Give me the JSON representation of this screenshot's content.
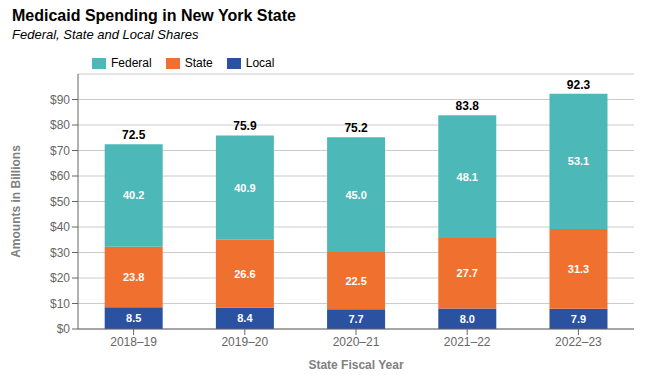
{
  "chart_data": {
    "type": "bar",
    "stacked": true,
    "title": "Medicaid Spending in New York State",
    "subtitle": "Federal, State and Local Shares",
    "xlabel": "State Fiscal Year",
    "ylabel": "Amounts in Billions",
    "categories": [
      "2018–19",
      "2019–20",
      "2020–21",
      "2021–22",
      "2022–23"
    ],
    "series": [
      {
        "name": "Local",
        "color": "#2a52a0",
        "values": [
          8.5,
          8.4,
          7.7,
          8.0,
          7.9
        ],
        "value_labels": [
          "8.5",
          "8.4",
          "7.7",
          "8.0",
          "7.9"
        ]
      },
      {
        "name": "State",
        "color": "#f07030",
        "values": [
          23.8,
          26.6,
          22.5,
          27.7,
          31.3
        ],
        "value_labels": [
          "23.8",
          "26.6",
          "22.5",
          "27.7",
          "31.3"
        ]
      },
      {
        "name": "Federal",
        "color": "#4db8b8",
        "values": [
          40.2,
          40.9,
          45.0,
          48.1,
          53.1
        ],
        "value_labels": [
          "40.2",
          "40.9",
          "45.0",
          "48.1",
          "53.1"
        ]
      }
    ],
    "totals": [
      72.5,
      75.9,
      75.2,
      83.8,
      92.3
    ],
    "ylim": [
      0,
      100
    ],
    "yticks": [
      {
        "value": 0,
        "label": "$0"
      },
      {
        "value": 10,
        "label": "$10"
      },
      {
        "value": 20,
        "label": "$20"
      },
      {
        "value": 30,
        "label": "$30"
      },
      {
        "value": 40,
        "label": "$40"
      },
      {
        "value": 50,
        "label": "$50"
      },
      {
        "value": 60,
        "label": "$60"
      },
      {
        "value": 70,
        "label": "$70"
      },
      {
        "value": 80,
        "label": "$80"
      },
      {
        "value": 90,
        "label": "$90"
      }
    ],
    "grid": true,
    "data_labels": true,
    "legend": "upper left"
  }
}
